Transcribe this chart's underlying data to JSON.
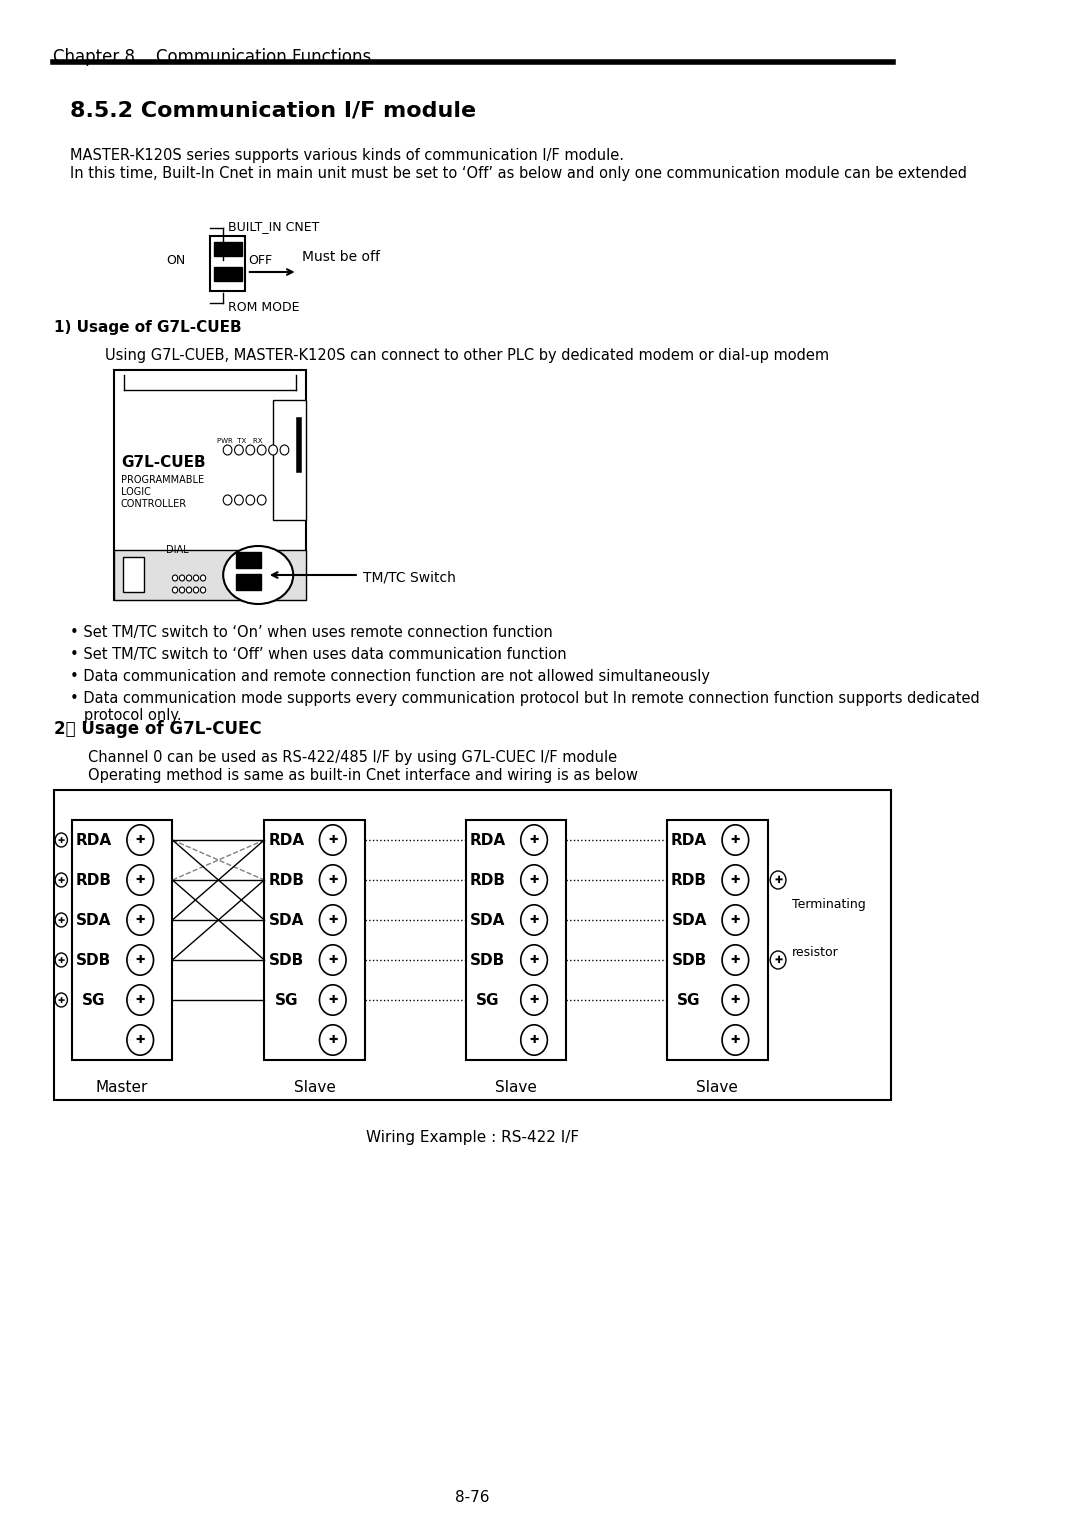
{
  "title_chapter": "Chapter 8    Communication Functions",
  "section_title": "8.5.2 Communication I/F module",
  "para1": "MASTER-K120S series supports various kinds of communication I/F module.",
  "para2": "In this time, Built-In Cnet in main unit must be set to ‘Off’ as below and only one communication module can be extended",
  "label_built_in": "BUILT_IN CNET",
  "label_on": "ON",
  "label_off": "OFF",
  "label_rom": "ROM MODE",
  "label_must_be_off": "Must be off",
  "section1_title": "1) Usage of G7L-CUEB",
  "section1_desc": "Using G7L-CUEB, MASTER-K120S can connect to other PLC by dedicated modem or dial-up modem",
  "label_g7l_cueb": "G7L-CUEB",
  "label_programmable": "PROGRAMMABLE",
  "label_logic": "LOGIC",
  "label_controller": "CONTROLLER",
  "label_tmtc": "TM/TC Switch",
  "bullet1": "• Set TM/TC switch to ‘On’ when uses remote connection function",
  "bullet2": "• Set TM/TC switch to ‘Off’ when uses data communication function",
  "bullet3": "• Data communication and remote connection function are not allowed simultaneously",
  "bullet4": "• Data communication mode supports every communication protocol but In remote connection function supports dedicated\n   protocol only.",
  "section2_title": "2） Usage of G7L-CUEC",
  "section2_desc1": "Channel 0 can be used as RS-422/485 I/F by using G7L-CUEC I/F module",
  "section2_desc2": "Operating method is same as built-in Cnet interface and wiring is as below",
  "wiring_title": "Wiring Example : RS-422 I/F",
  "page_num": "8-76",
  "bg_color": "#ffffff",
  "text_color": "#000000",
  "line_color": "#000000"
}
